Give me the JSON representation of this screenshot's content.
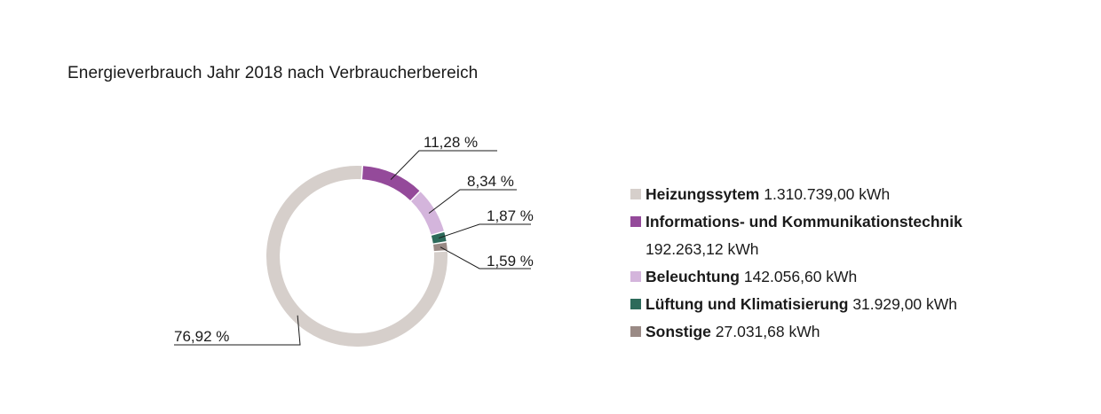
{
  "title": "Energieverbrauch Jahr 2018 nach Verbraucherbereich",
  "chart_data": {
    "type": "pie",
    "donut": true,
    "title": "Energieverbrauch Jahr 2018 nach Verbraucherbereich",
    "unit": "kWh",
    "series": [
      {
        "name": "Heizungssytem",
        "value": 1310739.0,
        "value_text": "1.310.739,00 kWh",
        "percent": 76.92,
        "percent_text": "76,92 %",
        "color": "#d6cfcb"
      },
      {
        "name": "Informations- und Kommunikationstechnik",
        "value": 192263.12,
        "value_text": "192.263,12 kWh",
        "percent": 11.28,
        "percent_text": "11,28 %",
        "color": "#944a9a"
      },
      {
        "name": "Beleuchtung",
        "value": 142056.6,
        "value_text": "142.056,60 kWh",
        "percent": 8.34,
        "percent_text": "8,34 %",
        "color": "#d4b5dc"
      },
      {
        "name": "Lüftung und Klimatisierung",
        "value": 31929.0,
        "value_text": "31.929,00 kWh",
        "percent": 1.87,
        "percent_text": "1,87 %",
        "color": "#2d6a5a"
      },
      {
        "name": "Sonstige",
        "value": 27031.68,
        "value_text": "27.031,68 kWh",
        "percent": 1.59,
        "percent_text": "1,59 %",
        "color": "#9a8a85"
      }
    ],
    "legend_position": "right"
  }
}
